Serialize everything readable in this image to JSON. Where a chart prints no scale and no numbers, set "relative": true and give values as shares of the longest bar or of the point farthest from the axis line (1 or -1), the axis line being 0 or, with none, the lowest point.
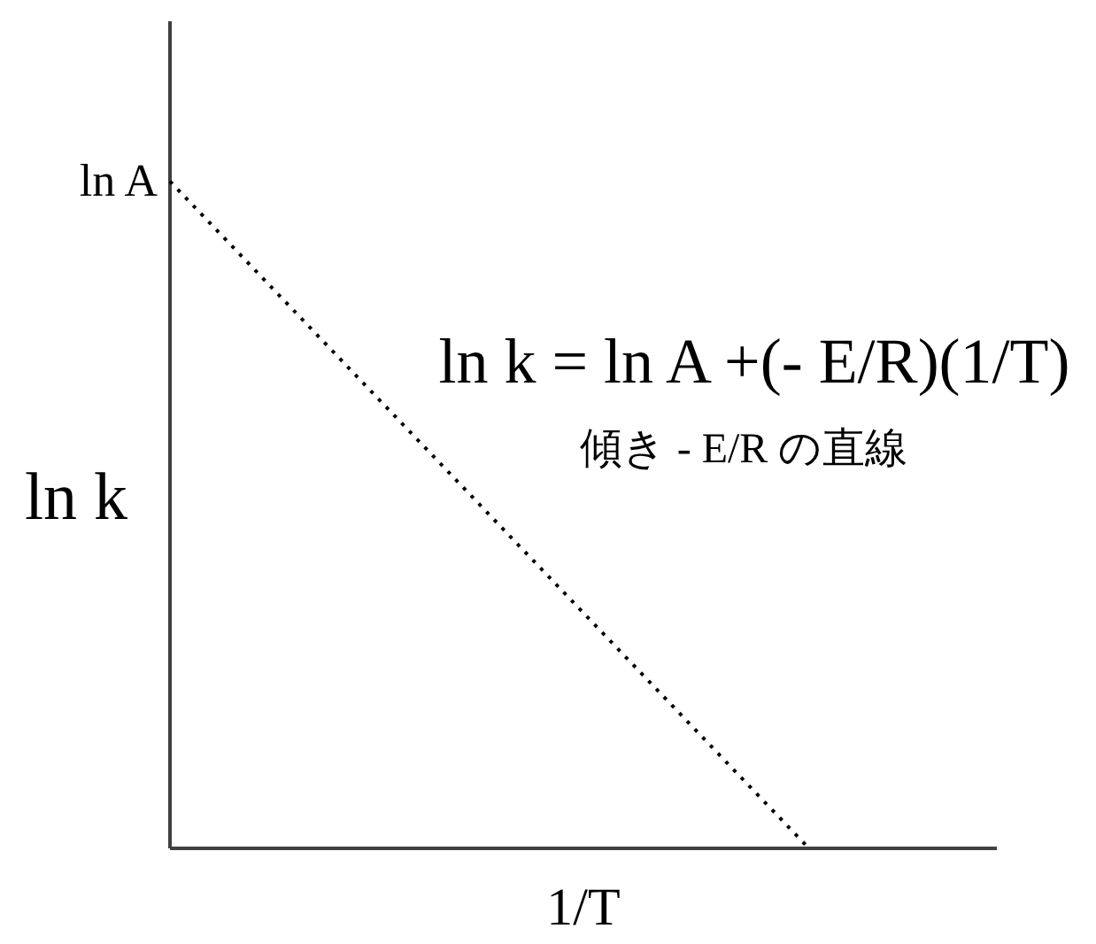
{
  "chart_data": {
    "type": "line",
    "relative": true,
    "categories": [
      null,
      null
    ],
    "values": [
      1,
      0
    ],
    "color": "#000000",
    "line_style": "dotted",
    "xlabel": "1/T",
    "ylabel": "ln k",
    "annotations": [
      "ln A",
      "ln k = ln A +(- E/R)(1/T)",
      "傾き - E/R の直線"
    ]
  }
}
